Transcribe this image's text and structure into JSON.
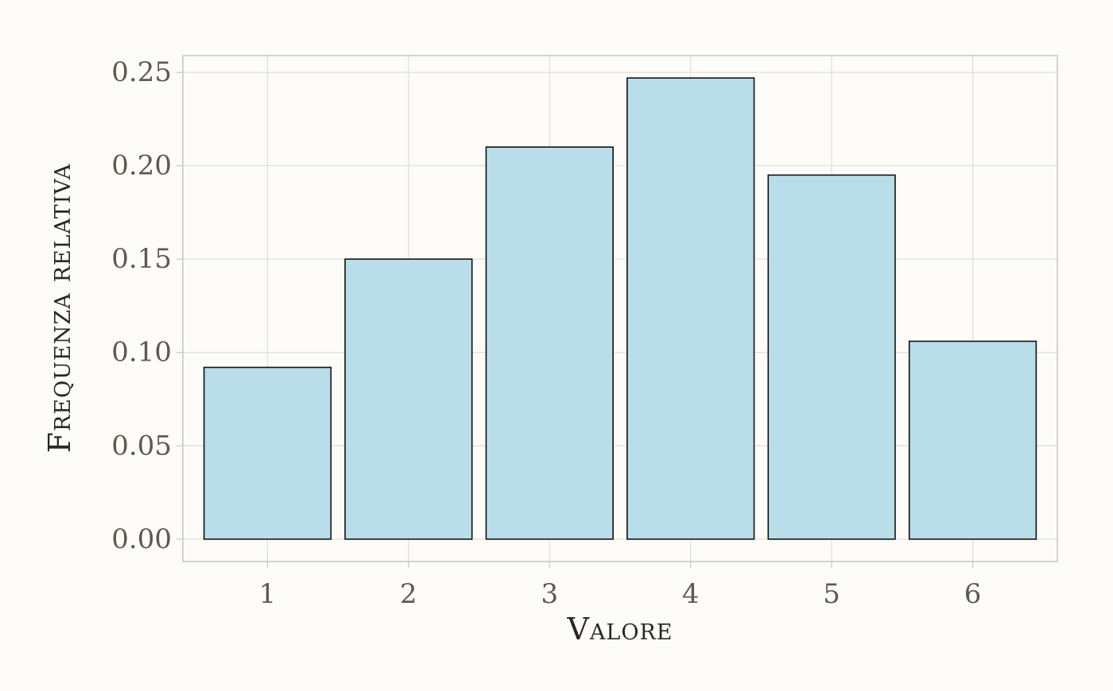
{
  "chart_data": {
    "type": "bar",
    "categories": [
      "1",
      "2",
      "3",
      "4",
      "5",
      "6"
    ],
    "values": [
      0.092,
      0.15,
      0.21,
      0.247,
      0.195,
      0.106
    ],
    "title": "",
    "xlabel": "Valore",
    "ylabel": "Frequenza relativa",
    "ylim": [
      -0.012,
      0.259
    ],
    "yticks": [
      0.0,
      0.05,
      0.1,
      0.15,
      0.2,
      0.25
    ],
    "ytick_labels": [
      "0.00",
      "0.05",
      "0.10",
      "0.15",
      "0.20",
      "0.25"
    ],
    "grid": true,
    "legend": "none",
    "colors": {
      "bar_fill": "#b9dde9",
      "bar_outline": "#111111",
      "background": "#fdfcf9",
      "grid": "#e1ddd6"
    }
  }
}
